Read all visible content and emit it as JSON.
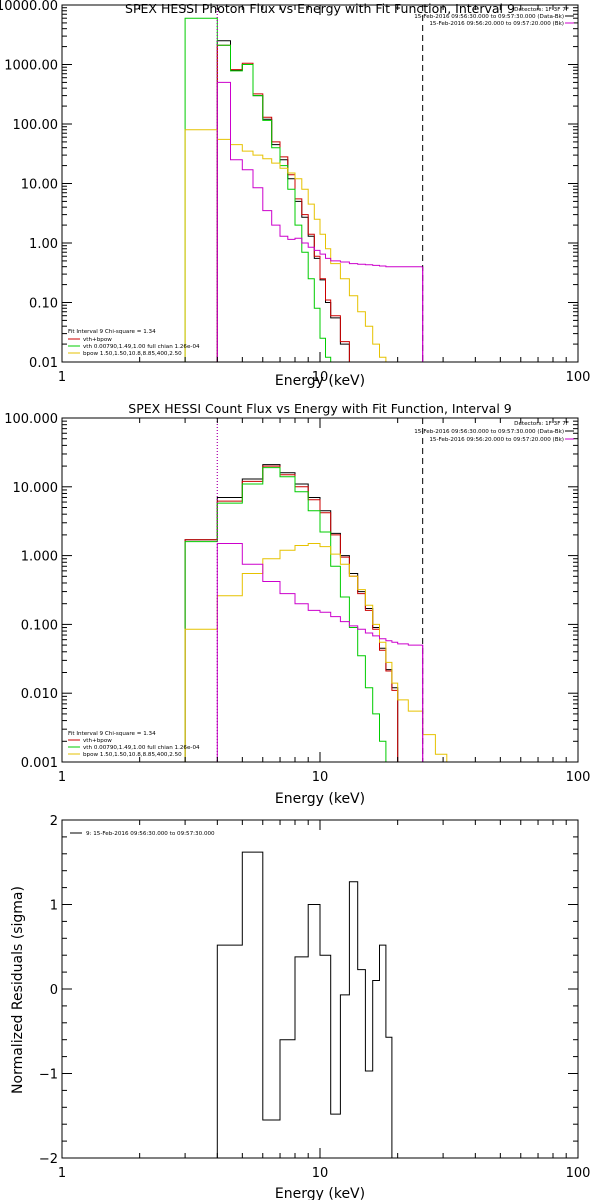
{
  "colors": {
    "data": "#000000",
    "total": "#cc0000",
    "vth": "#00cc00",
    "bpow": "#e6c200",
    "bkg": "#cc00cc",
    "axes": "#000000"
  },
  "chart_data": [
    {
      "type": "line",
      "title": "SPEX HESSI Photon Flux vs Energy with Fit Function, Interval 9",
      "xlabel": "Energy (keV)",
      "ylabel": "",
      "xscale": "log",
      "yscale": "log",
      "xlim": [
        1,
        100
      ],
      "ylim": [
        0.01,
        10000
      ],
      "xticks": [
        1,
        10,
        100
      ],
      "xtick_labels": [
        "1",
        "10",
        "100"
      ],
      "yticks": [
        0.01,
        0.1,
        1,
        10,
        100,
        1000,
        10000
      ],
      "ytick_labels": [
        "0.01",
        "0.10",
        "1.00",
        "10.00",
        "100.00",
        "1000.00",
        "10000.00"
      ],
      "fit_range": [
        4.0,
        25.0
      ],
      "legend_tr": [
        "Detectors: 1F 3F 7F",
        "15-Feb-2016 09:56:30.000 to 09:57:30.000 (Data-Bk)",
        "15-Feb-2016 09:56:20.000 to 09:57:20.000 (Bk)"
      ],
      "legend_bl": [
        "Fit Interval 9   Chi-square = 1.34",
        "vth+bpow",
        "vth 0.00790,1.49,1.00  full chian 1.26e-04",
        "bpow 1.50,1.50,10.8,8.85,400,2.50"
      ],
      "edges": [
        3.0,
        3.5,
        4.0,
        4.5,
        5.0,
        5.5,
        6.0,
        6.5,
        7.0,
        7.5,
        8.0,
        8.5,
        9.0,
        9.5,
        10.0,
        10.5,
        11.0,
        12.0,
        13.0,
        14.0,
        15.0,
        16.0,
        17.0,
        18.0,
        19.0,
        20.0,
        22.0,
        25.0,
        28.0,
        31.0
      ],
      "series": [
        {
          "color": "data",
          "values": [
            null,
            null,
            2500,
            800,
            1000,
            300,
            120,
            45,
            25,
            12,
            5,
            2.7,
            1.3,
            0.55,
            0.24,
            0.1,
            0.055,
            0.02,
            null,
            null,
            null,
            null,
            null,
            null,
            null,
            null,
            null,
            null,
            null
          ]
        },
        {
          "color": "total",
          "values": [
            null,
            null,
            2100,
            820,
            1050,
            320,
            130,
            50,
            28,
            14,
            5.5,
            3.0,
            1.4,
            0.6,
            0.25,
            0.11,
            0.06,
            0.022,
            null,
            null,
            null,
            null,
            null,
            null,
            null,
            null,
            null,
            null,
            null
          ]
        },
        {
          "color": "vth",
          "values": [
            6000,
            6000,
            2100,
            780,
            1000,
            300,
            115,
            40,
            20,
            8,
            2.0,
            0.7,
            0.25,
            0.08,
            0.025,
            0.012,
            null,
            null,
            null,
            null,
            null,
            null,
            null,
            null,
            null,
            null,
            null,
            null,
            null
          ]
        },
        {
          "color": "bpow",
          "values": [
            80,
            80,
            55,
            45,
            35,
            30,
            26,
            22,
            18,
            15,
            12,
            8,
            4.5,
            2.5,
            1.4,
            0.8,
            0.45,
            0.25,
            0.13,
            0.07,
            0.04,
            0.02,
            0.012,
            null,
            null,
            null,
            null,
            null,
            null
          ]
        },
        {
          "color": "bkg",
          "values": [
            null,
            null,
            500,
            25,
            17,
            8.5,
            3.5,
            2.0,
            1.3,
            1.15,
            1.2,
            1.0,
            0.85,
            0.75,
            0.65,
            0.55,
            0.5,
            0.48,
            0.45,
            0.44,
            0.43,
            0.42,
            0.41,
            0.4,
            0.4,
            0.4,
            0.4,
            null,
            null
          ]
        }
      ],
      "vlines": [
        {
          "x": 4.0,
          "style": "dotted",
          "color": "axes"
        },
        {
          "x": 4.0,
          "style": "dotted",
          "color": "bkg"
        },
        {
          "x": 25.0,
          "style": "dashed",
          "color": "axes"
        },
        {
          "x": 25.0,
          "style": "solid",
          "color": "bkg"
        }
      ]
    },
    {
      "type": "line",
      "title": "SPEX HESSI Count Flux vs Energy with Fit Function, Interval 9",
      "xlabel": "Energy (keV)",
      "ylabel": "",
      "xscale": "log",
      "yscale": "log",
      "xlim": [
        1,
        100
      ],
      "ylim": [
        0.001,
        100
      ],
      "xticks": [
        1,
        10,
        100
      ],
      "xtick_labels": [
        "1",
        "10",
        "100"
      ],
      "yticks": [
        0.001,
        0.01,
        0.1,
        1,
        10,
        100
      ],
      "ytick_labels": [
        "0.001",
        "0.010",
        "0.100",
        "1.000",
        "10.000",
        "100.000"
      ],
      "fit_range": [
        4.0,
        25.0
      ],
      "legend_tr": [
        "Detectors: 1F 3F 7F",
        "15-Feb-2016 09:56:30.000 to 09:57:30.000 (Data-Bk)",
        "15-Feb-2016 09:56:20.000 to 09:57:20.000 (Bk)"
      ],
      "legend_bl": [
        "Fit Interval 9   Chi-square = 1.34",
        "vth+bpow",
        "vth 0.00790,1.49,1.00  full chian 1.26e-04",
        "bpow 1.50,1.50,10.8,8.85,400,2.50"
      ],
      "edges": [
        3.0,
        4.0,
        5.0,
        6.0,
        7.0,
        8.0,
        9.0,
        10.0,
        11.0,
        12.0,
        13.0,
        14.0,
        15.0,
        16.0,
        17.0,
        18.0,
        19.0,
        20.0,
        22.0,
        25.0,
        28.0,
        31.0,
        34.0
      ],
      "series": [
        {
          "color": "data",
          "values": [
            1.7,
            7.0,
            13,
            21,
            16,
            11,
            7,
            4.5,
            2.1,
            1.0,
            0.55,
            0.3,
            0.17,
            0.09,
            0.045,
            0.022,
            0.012,
            null,
            null,
            null,
            null,
            null
          ]
        },
        {
          "color": "total",
          "values": [
            1.7,
            6.2,
            12,
            20,
            15,
            10,
            6.5,
            4.2,
            2.0,
            0.95,
            0.5,
            0.28,
            0.16,
            0.085,
            0.042,
            0.021,
            0.011,
            null,
            null,
            null,
            null,
            null
          ]
        },
        {
          "color": "vth",
          "values": [
            1.6,
            5.8,
            11,
            19,
            14,
            8.5,
            4.5,
            2.2,
            0.7,
            0.25,
            0.09,
            0.035,
            0.012,
            0.005,
            0.002,
            null,
            null,
            null,
            null,
            null,
            null,
            null
          ]
        },
        {
          "color": "bpow",
          "values": [
            0.085,
            0.26,
            0.55,
            0.9,
            1.2,
            1.4,
            1.5,
            1.35,
            1.05,
            0.75,
            0.5,
            0.32,
            0.19,
            0.1,
            0.055,
            0.028,
            0.014,
            0.008,
            0.0055,
            0.0025,
            0.0013,
            null
          ]
        },
        {
          "color": "bkg",
          "values": [
            null,
            1.5,
            0.75,
            0.42,
            0.28,
            0.2,
            0.16,
            0.15,
            0.13,
            0.11,
            0.095,
            0.085,
            0.075,
            0.068,
            0.062,
            0.058,
            0.055,
            0.052,
            0.05,
            null,
            null,
            null
          ]
        }
      ],
      "vlines": [
        {
          "x": 4.0,
          "style": "dotted",
          "color": "axes"
        },
        {
          "x": 4.0,
          "style": "dotted",
          "color": "bkg"
        },
        {
          "x": 25.0,
          "style": "dashed",
          "color": "axes"
        },
        {
          "x": 25.0,
          "style": "solid",
          "color": "bkg"
        }
      ]
    },
    {
      "type": "line",
      "title": "",
      "xlabel": "Energy (keV)",
      "ylabel": "Normalized Residuals (sigma)",
      "xscale": "log",
      "yscale": "linear",
      "xlim": [
        1,
        100
      ],
      "ylim": [
        -2,
        2
      ],
      "xticks": [
        1,
        10,
        100
      ],
      "xtick_labels": [
        "1",
        "10",
        "100"
      ],
      "yticks": [
        -2,
        -1,
        0,
        1,
        2
      ],
      "ytick_labels": [
        "−2",
        "−1",
        "0",
        "1",
        "2"
      ],
      "legend_tl": [
        "9: 15-Feb-2016 09:56:30.000 to 09:57:30.000"
      ],
      "edges": [
        4.0,
        5.0,
        6.0,
        7.0,
        8.0,
        9.0,
        10.0,
        11.0,
        12.0,
        13.0,
        14.0,
        15.0,
        16.0,
        17.0,
        18.0,
        19.0,
        20.0,
        22.0,
        25.0
      ],
      "series": [
        {
          "color": "data",
          "values": [
            0.52,
            1.62,
            -1.55,
            -0.6,
            0.38,
            1.0,
            0.4,
            -1.48,
            -0.07,
            1.27,
            0.23,
            -0.97,
            0.1,
            0.52,
            -0.57
          ]
        }
      ]
    }
  ]
}
